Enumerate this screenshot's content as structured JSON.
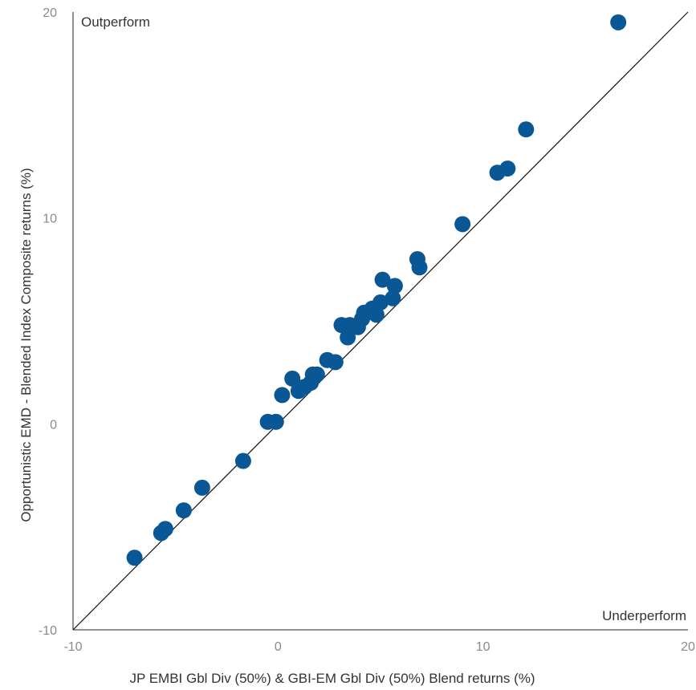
{
  "chart_data": {
    "type": "scatter",
    "xlabel": "JP EMBI Gbl Div (50%) & GBI-EM Gbl Div (50%) Blend returns (%)",
    "ylabel": "Opportunistic EMD - Blended Index Composite returns (%)",
    "xlim": [
      -10,
      20
    ],
    "ylim": [
      -10,
      20
    ],
    "x_ticks": [
      "-10",
      "0",
      "10",
      "20"
    ],
    "y_ticks": [
      "-10",
      "0",
      "10",
      "20"
    ],
    "grid": false,
    "reference_line": {
      "x": [
        -10,
        20
      ],
      "y": [
        -10,
        20
      ]
    },
    "annotations": {
      "top_left": "Outperform",
      "bottom_right": "Underperform"
    },
    "colors": {
      "points": "#0a5795",
      "axes": "#222222",
      "ticks": "#8a8a8a"
    },
    "series": [
      {
        "points": [
          [
            -7.0,
            -6.5
          ],
          [
            -5.7,
            -5.3
          ],
          [
            -5.5,
            -5.1
          ],
          [
            -4.6,
            -4.2
          ],
          [
            -3.7,
            -3.1
          ],
          [
            -1.7,
            -1.8
          ],
          [
            -0.5,
            0.1
          ],
          [
            -0.1,
            0.1
          ],
          [
            0.2,
            1.4
          ],
          [
            0.7,
            2.2
          ],
          [
            1.0,
            1.6
          ],
          [
            1.3,
            1.8
          ],
          [
            1.6,
            2.0
          ],
          [
            1.7,
            2.4
          ],
          [
            1.9,
            2.4
          ],
          [
            2.4,
            3.1
          ],
          [
            2.8,
            3.0
          ],
          [
            3.1,
            4.8
          ],
          [
            3.4,
            4.2
          ],
          [
            3.5,
            4.8
          ],
          [
            3.9,
            4.7
          ],
          [
            4.1,
            5.1
          ],
          [
            4.2,
            5.4
          ],
          [
            4.6,
            5.6
          ],
          [
            4.8,
            5.3
          ],
          [
            5.0,
            5.9
          ],
          [
            5.1,
            7.0
          ],
          [
            5.6,
            6.1
          ],
          [
            5.7,
            6.7
          ],
          [
            6.8,
            8.0
          ],
          [
            6.9,
            7.6
          ],
          [
            9.0,
            9.7
          ],
          [
            10.7,
            12.2
          ],
          [
            11.2,
            12.4
          ],
          [
            12.1,
            14.3
          ],
          [
            16.6,
            19.5
          ]
        ]
      }
    ]
  }
}
